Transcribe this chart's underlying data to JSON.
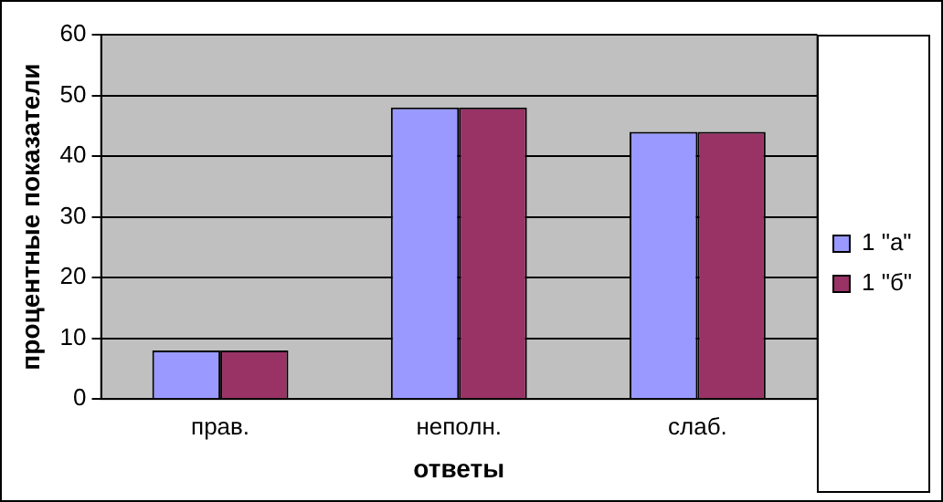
{
  "chart_data": {
    "type": "bar",
    "xlabel": "ответы",
    "ylabel": "процентные показатели",
    "categories": [
      "прав.",
      "неполн.",
      "слаб."
    ],
    "series": [
      {
        "name": "1 \"а\"",
        "color": "#9999ff",
        "values": [
          8,
          48,
          44
        ]
      },
      {
        "name": "1 \"б\"",
        "color": "#993366",
        "values": [
          8,
          48,
          44
        ]
      }
    ],
    "ylim": [
      0,
      60
    ],
    "yticks": [
      0,
      10,
      20,
      30,
      40,
      50,
      60
    ],
    "grid": "y",
    "legend": "right"
  }
}
